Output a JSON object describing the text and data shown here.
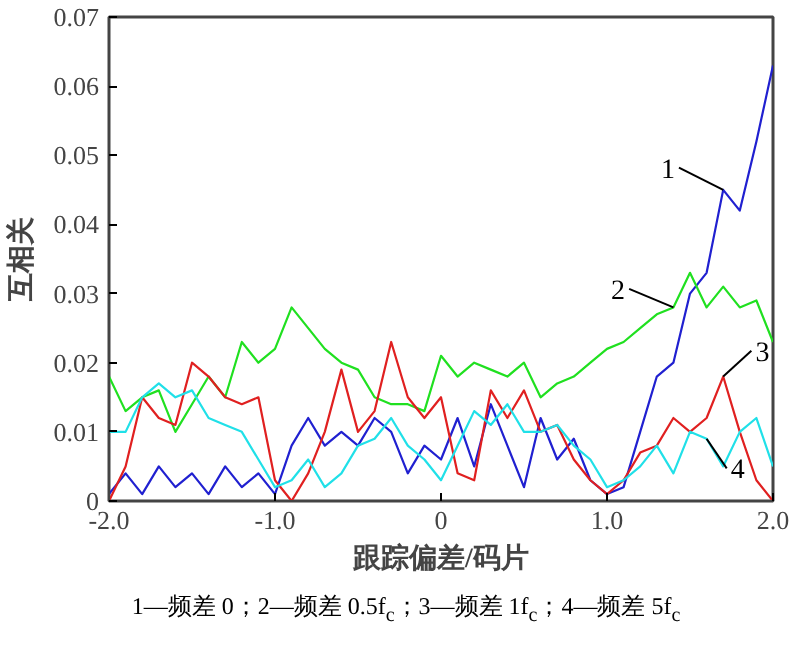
{
  "chart_data": {
    "type": "line",
    "xlabel": "跟踪偏差/码片",
    "ylabel": "互相关",
    "x": [
      -2.0,
      -1.9,
      -1.8,
      -1.7,
      -1.6,
      -1.5,
      -1.4,
      -1.3,
      -1.2,
      -1.1,
      -1.0,
      -0.9,
      -0.8,
      -0.7,
      -0.6,
      -0.5,
      -0.4,
      -0.3,
      -0.2,
      -0.1,
      0.0,
      0.1,
      0.2,
      0.3,
      0.4,
      0.5,
      0.6,
      0.7,
      0.8,
      0.9,
      1.0,
      1.1,
      1.2,
      1.3,
      1.4,
      1.5,
      1.6,
      1.7,
      1.8,
      1.9,
      2.0
    ],
    "series": [
      {
        "color": "#2020d0",
        "values": [
          0.001,
          0.004,
          0.001,
          0.005,
          0.002,
          0.004,
          0.001,
          0.005,
          0.002,
          0.004,
          0.001,
          0.008,
          0.012,
          0.008,
          0.01,
          0.008,
          0.012,
          0.01,
          0.004,
          0.008,
          0.006,
          0.012,
          0.005,
          0.014,
          0.008,
          0.002,
          0.012,
          0.006,
          0.009,
          0.003,
          0.001,
          0.002,
          0.01,
          0.018,
          0.02,
          0.03,
          0.033,
          0.045,
          0.042,
          0.052,
          0.063
        ]
      },
      {
        "color": "#20e020",
        "values": [
          0.018,
          0.013,
          0.015,
          0.016,
          0.01,
          0.014,
          0.018,
          0.015,
          0.023,
          0.02,
          0.022,
          0.028,
          0.025,
          0.022,
          0.02,
          0.019,
          0.015,
          0.014,
          0.014,
          0.013,
          0.021,
          0.018,
          0.02,
          0.019,
          0.018,
          0.02,
          0.015,
          0.017,
          0.018,
          0.02,
          0.022,
          0.023,
          0.025,
          0.027,
          0.028,
          0.033,
          0.028,
          0.031,
          0.028,
          0.029,
          0.023
        ]
      },
      {
        "color": "#e02020",
        "values": [
          0.0,
          0.005,
          0.015,
          0.012,
          0.011,
          0.02,
          0.018,
          0.015,
          0.014,
          0.015,
          0.003,
          0.0,
          0.004,
          0.01,
          0.019,
          0.01,
          0.013,
          0.023,
          0.015,
          0.012,
          0.015,
          0.004,
          0.003,
          0.016,
          0.012,
          0.016,
          0.01,
          0.011,
          0.006,
          0.003,
          0.001,
          0.003,
          0.007,
          0.008,
          0.012,
          0.01,
          0.012,
          0.018,
          0.01,
          0.003,
          0.0
        ]
      },
      {
        "color": "#20e0e8",
        "values": [
          0.01,
          0.01,
          0.015,
          0.017,
          0.015,
          0.016,
          0.012,
          0.011,
          0.01,
          0.006,
          0.002,
          0.003,
          0.006,
          0.002,
          0.004,
          0.008,
          0.009,
          0.012,
          0.008,
          0.006,
          0.003,
          0.008,
          0.013,
          0.011,
          0.014,
          0.01,
          0.01,
          0.011,
          0.008,
          0.006,
          0.002,
          0.003,
          0.005,
          0.008,
          0.004,
          0.01,
          0.009,
          0.005,
          0.01,
          0.012,
          0.005
        ]
      }
    ],
    "xlim": [
      -2.0,
      2.0
    ],
    "ylim": [
      0,
      0.07
    ],
    "xticks": [
      {
        "value": -2,
        "label": "-2.0"
      },
      {
        "value": -1,
        "label": "-1.0"
      },
      0,
      {
        "value": 1,
        "label": "1.0"
      },
      {
        "value": 2,
        "label": "2.0"
      }
    ],
    "yticks": [
      0,
      0.01,
      0.02,
      0.03,
      0.04,
      0.05,
      0.06,
      0.07
    ],
    "grid": false,
    "annotations": [
      {
        "text": "1",
        "x": 1.7,
        "y": 0.045
      },
      {
        "text": "2",
        "x": 1.4,
        "y": 0.028
      },
      {
        "text": "3",
        "x": 1.7,
        "y": 0.018
      },
      {
        "text": "4",
        "x": 1.6,
        "y": 0.009
      },
      "1—频差 0；2—频差 0.5f$_{c}$；3—频差 1f$_{c}$；4—频差 5f$_{c}$"
    ]
  }
}
